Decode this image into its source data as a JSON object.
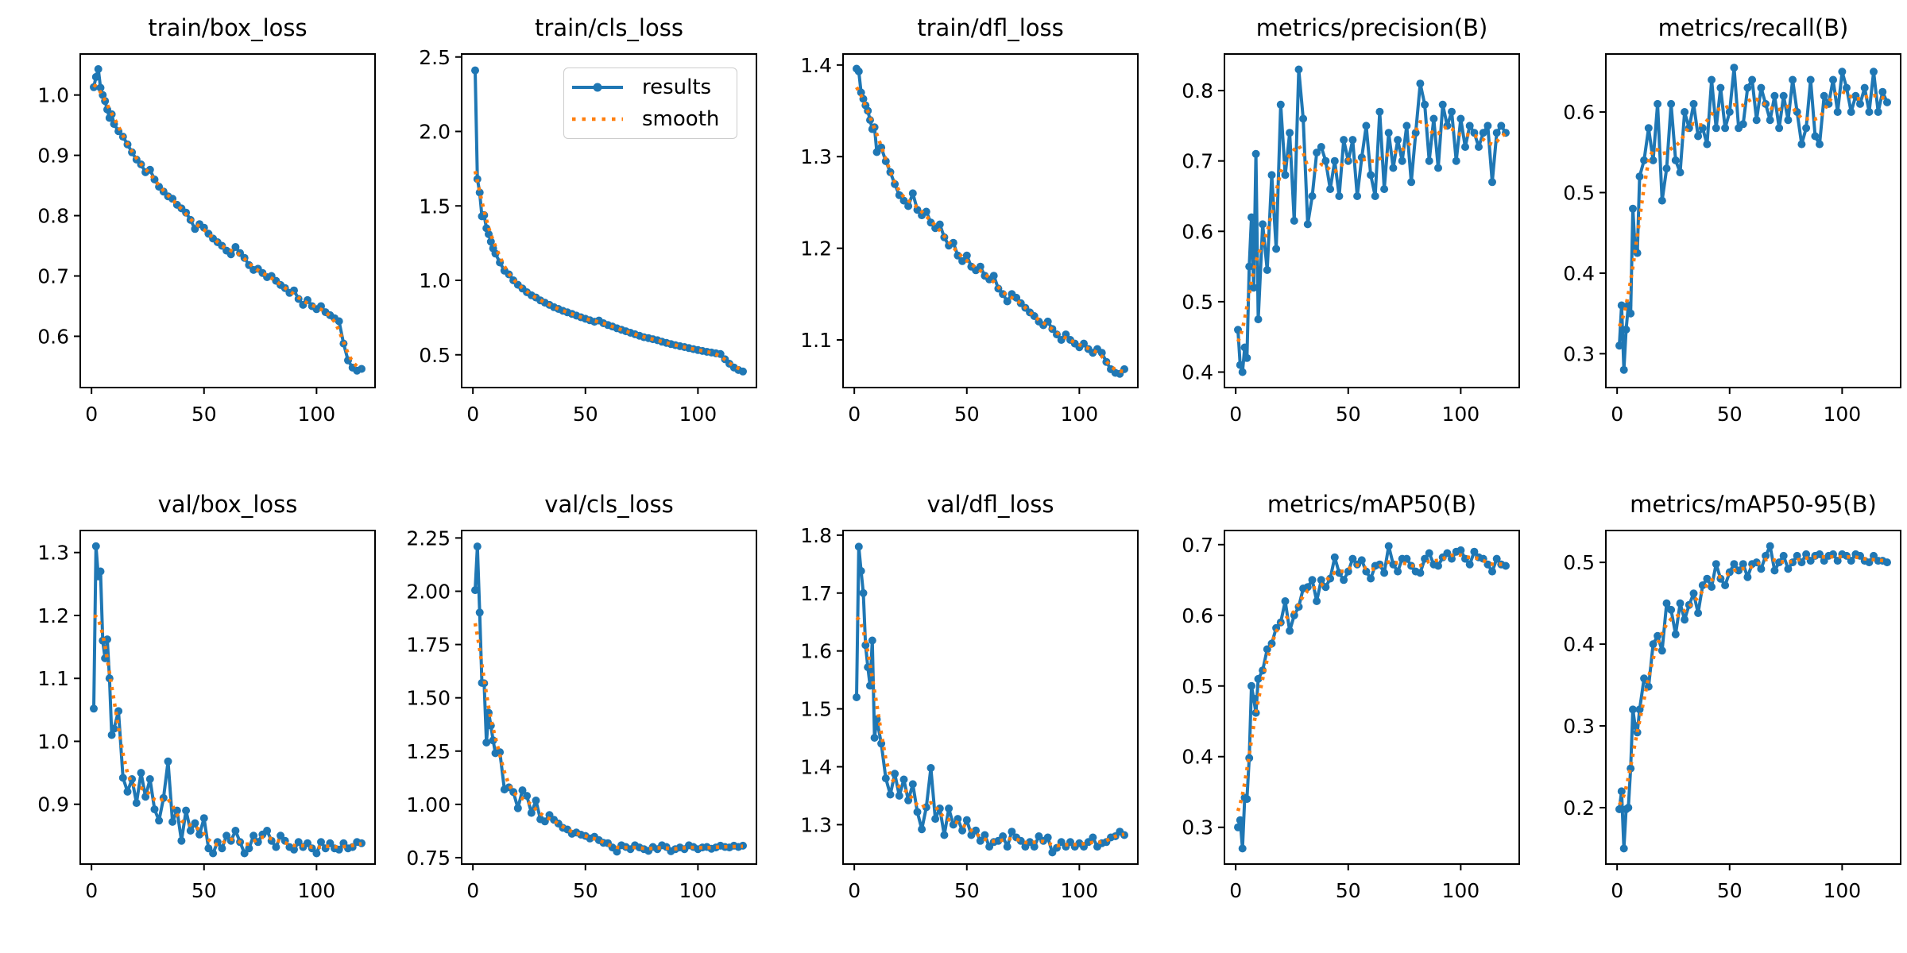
{
  "figure": {
    "background": "#ffffff",
    "spine_color": "#000000",
    "tick_color": "#000000"
  },
  "chart_data": {
    "type": "line",
    "legend": [
      "results",
      "smooth"
    ],
    "legend_position": "upper-right of train/cls_loss subplot",
    "colors": {
      "results": "#1f77b4",
      "smooth": "#ff7f0e"
    },
    "smooth": {
      "method": "gaussian",
      "sigma": 3
    },
    "grid": false,
    "xticks": [
      0,
      50,
      100
    ],
    "xtick_labels": [
      "0",
      "50",
      "100"
    ],
    "xlim": [
      -5,
      126
    ],
    "x": [
      1,
      2,
      3,
      4,
      5,
      6,
      7,
      8,
      9,
      10,
      12,
      14,
      16,
      18,
      20,
      22,
      24,
      26,
      28,
      30,
      32,
      34,
      36,
      38,
      40,
      42,
      44,
      46,
      48,
      50,
      52,
      54,
      56,
      58,
      60,
      62,
      64,
      66,
      68,
      70,
      72,
      74,
      76,
      78,
      80,
      82,
      84,
      86,
      88,
      90,
      92,
      94,
      96,
      98,
      100,
      102,
      104,
      106,
      108,
      110,
      112,
      114,
      116,
      118,
      120
    ],
    "subplots": [
      {
        "title": "train/box_loss",
        "ylim": [
          0.515,
          1.068
        ],
        "yticks": [
          0.6,
          0.7,
          0.8,
          0.9,
          1.0
        ],
        "ytick_labels": [
          "0.6",
          "0.7",
          "0.8",
          "0.9",
          "1.0"
        ],
        "values": [
          1.013,
          1.03,
          1.043,
          1.012,
          1.0,
          0.99,
          0.976,
          0.962,
          0.968,
          0.952,
          0.94,
          0.931,
          0.918,
          0.905,
          0.893,
          0.885,
          0.872,
          0.876,
          0.86,
          0.848,
          0.84,
          0.832,
          0.828,
          0.818,
          0.812,
          0.805,
          0.793,
          0.778,
          0.786,
          0.78,
          0.77,
          0.762,
          0.756,
          0.75,
          0.742,
          0.736,
          0.748,
          0.738,
          0.73,
          0.718,
          0.71,
          0.712,
          0.705,
          0.698,
          0.7,
          0.692,
          0.685,
          0.68,
          0.672,
          0.676,
          0.662,
          0.652,
          0.66,
          0.65,
          0.645,
          0.65,
          0.64,
          0.635,
          0.63,
          0.625,
          0.588,
          0.56,
          0.548,
          0.543,
          0.546
        ]
      },
      {
        "title": "train/cls_loss",
        "ylim": [
          0.28,
          2.52
        ],
        "yticks": [
          0.5,
          1.0,
          1.5,
          2.0,
          2.5
        ],
        "ytick_labels": [
          "0.5",
          "1.0",
          "1.5",
          "2.0",
          "2.5"
        ],
        "has_legend": true,
        "values": [
          2.41,
          1.68,
          1.59,
          1.43,
          1.438,
          1.35,
          1.31,
          1.26,
          1.215,
          1.18,
          1.12,
          1.065,
          1.04,
          1.0,
          0.97,
          0.945,
          0.92,
          0.9,
          0.885,
          0.865,
          0.85,
          0.835,
          0.82,
          0.808,
          0.795,
          0.785,
          0.775,
          0.763,
          0.752,
          0.742,
          0.732,
          0.722,
          0.73,
          0.712,
          0.7,
          0.69,
          0.678,
          0.668,
          0.658,
          0.648,
          0.638,
          0.628,
          0.618,
          0.612,
          0.605,
          0.598,
          0.588,
          0.58,
          0.572,
          0.565,
          0.558,
          0.552,
          0.545,
          0.538,
          0.532,
          0.526,
          0.52,
          0.515,
          0.51,
          0.505,
          0.47,
          0.44,
          0.415,
          0.398,
          0.388
        ]
      },
      {
        "title": "train/dfl_loss",
        "ylim": [
          1.048,
          1.412
        ],
        "yticks": [
          1.1,
          1.2,
          1.3,
          1.4
        ],
        "ytick_labels": [
          "1.1",
          "1.2",
          "1.3",
          "1.4"
        ],
        "values": [
          1.396,
          1.393,
          1.37,
          1.363,
          1.356,
          1.35,
          1.34,
          1.33,
          1.332,
          1.305,
          1.31,
          1.295,
          1.283,
          1.27,
          1.258,
          1.252,
          1.246,
          1.26,
          1.242,
          1.236,
          1.24,
          1.228,
          1.222,
          1.226,
          1.212,
          1.203,
          1.206,
          1.192,
          1.186,
          1.192,
          1.18,
          1.176,
          1.18,
          1.17,
          1.166,
          1.17,
          1.156,
          1.15,
          1.142,
          1.15,
          1.146,
          1.14,
          1.135,
          1.13,
          1.126,
          1.12,
          1.116,
          1.12,
          1.112,
          1.106,
          1.1,
          1.106,
          1.1,
          1.096,
          1.092,
          1.096,
          1.09,
          1.086,
          1.09,
          1.086,
          1.076,
          1.068,
          1.064,
          1.063,
          1.068
        ]
      },
      {
        "title": "metrics/precision(B)",
        "ylim": [
          0.378,
          0.852
        ],
        "yticks": [
          0.4,
          0.5,
          0.6,
          0.7,
          0.8
        ],
        "ytick_labels": [
          "0.4",
          "0.5",
          "0.6",
          "0.7",
          "0.8"
        ],
        "values": [
          0.46,
          0.41,
          0.4,
          0.435,
          0.42,
          0.55,
          0.62,
          0.52,
          0.71,
          0.475,
          0.61,
          0.545,
          0.68,
          0.575,
          0.78,
          0.68,
          0.74,
          0.615,
          0.83,
          0.76,
          0.61,
          0.65,
          0.712,
          0.72,
          0.7,
          0.66,
          0.7,
          0.65,
          0.73,
          0.7,
          0.73,
          0.65,
          0.705,
          0.75,
          0.68,
          0.65,
          0.77,
          0.66,
          0.74,
          0.69,
          0.73,
          0.7,
          0.75,
          0.67,
          0.74,
          0.81,
          0.78,
          0.7,
          0.76,
          0.69,
          0.78,
          0.75,
          0.77,
          0.7,
          0.76,
          0.72,
          0.75,
          0.74,
          0.72,
          0.74,
          0.75,
          0.67,
          0.74,
          0.75,
          0.74
        ]
      },
      {
        "title": "metrics/recall(B)",
        "ylim": [
          0.258,
          0.672
        ],
        "yticks": [
          0.3,
          0.4,
          0.5,
          0.6
        ],
        "ytick_labels": [
          "0.3",
          "0.4",
          "0.5",
          "0.6"
        ],
        "values": [
          0.31,
          0.36,
          0.28,
          0.33,
          0.36,
          0.35,
          0.48,
          0.43,
          0.425,
          0.52,
          0.54,
          0.58,
          0.54,
          0.61,
          0.49,
          0.53,
          0.61,
          0.54,
          0.525,
          0.6,
          0.58,
          0.61,
          0.57,
          0.58,
          0.56,
          0.64,
          0.58,
          0.63,
          0.58,
          0.6,
          0.655,
          0.58,
          0.585,
          0.63,
          0.64,
          0.59,
          0.63,
          0.61,
          0.59,
          0.62,
          0.58,
          0.62,
          0.59,
          0.64,
          0.6,
          0.56,
          0.58,
          0.64,
          0.57,
          0.56,
          0.62,
          0.61,
          0.64,
          0.6,
          0.65,
          0.63,
          0.6,
          0.62,
          0.61,
          0.63,
          0.6,
          0.65,
          0.6,
          0.625,
          0.612
        ]
      },
      {
        "title": "val/box_loss",
        "ylim": [
          0.805,
          1.335
        ],
        "yticks": [
          0.9,
          1.0,
          1.1,
          1.2,
          1.3
        ],
        "ytick_labels": [
          "0.9",
          "1.0",
          "1.1",
          "1.2",
          "1.3"
        ],
        "values": [
          1.052,
          1.31,
          1.262,
          1.27,
          1.16,
          1.132,
          1.162,
          1.1,
          1.01,
          1.02,
          1.048,
          0.942,
          0.92,
          0.94,
          0.902,
          0.95,
          0.912,
          0.94,
          0.892,
          0.874,
          0.91,
          0.968,
          0.872,
          0.89,
          0.842,
          0.89,
          0.858,
          0.87,
          0.852,
          0.878,
          0.83,
          0.822,
          0.84,
          0.83,
          0.85,
          0.842,
          0.858,
          0.84,
          0.822,
          0.83,
          0.85,
          0.84,
          0.852,
          0.858,
          0.842,
          0.832,
          0.85,
          0.842,
          0.832,
          0.828,
          0.84,
          0.832,
          0.838,
          0.83,
          0.822,
          0.84,
          0.83,
          0.838,
          0.83,
          0.828,
          0.838,
          0.83,
          0.832,
          0.84,
          0.838
        ]
      },
      {
        "title": "val/cls_loss",
        "ylim": [
          0.72,
          2.285
        ],
        "yticks": [
          0.75,
          1.0,
          1.25,
          1.5,
          1.75,
          2.0,
          2.25
        ],
        "ytick_labels": [
          "0.75",
          "1.00",
          "1.25",
          "1.50",
          "1.75",
          "2.00",
          "2.25"
        ],
        "values": [
          2.005,
          2.21,
          1.9,
          1.57,
          1.568,
          1.29,
          1.43,
          1.37,
          1.3,
          1.24,
          1.245,
          1.07,
          1.08,
          1.058,
          0.982,
          1.066,
          1.04,
          0.96,
          1.018,
          0.93,
          0.92,
          0.95,
          0.928,
          0.91,
          0.89,
          0.882,
          0.862,
          0.868,
          0.858,
          0.852,
          0.84,
          0.848,
          0.832,
          0.82,
          0.818,
          0.798,
          0.778,
          0.808,
          0.8,
          0.79,
          0.808,
          0.798,
          0.79,
          0.782,
          0.8,
          0.79,
          0.808,
          0.8,
          0.78,
          0.79,
          0.798,
          0.79,
          0.808,
          0.8,
          0.79,
          0.798,
          0.8,
          0.792,
          0.798,
          0.806,
          0.8,
          0.798,
          0.806,
          0.8,
          0.806
        ]
      },
      {
        "title": "val/dfl_loss",
        "ylim": [
          1.232,
          1.808
        ],
        "yticks": [
          1.3,
          1.4,
          1.5,
          1.6,
          1.7,
          1.8
        ],
        "ytick_labels": [
          "1.3",
          "1.4",
          "1.5",
          "1.6",
          "1.7",
          "1.8"
        ],
        "values": [
          1.52,
          1.78,
          1.738,
          1.7,
          1.61,
          1.572,
          1.54,
          1.618,
          1.45,
          1.482,
          1.44,
          1.38,
          1.352,
          1.388,
          1.35,
          1.378,
          1.342,
          1.37,
          1.322,
          1.292,
          1.33,
          1.398,
          1.31,
          1.328,
          1.282,
          1.328,
          1.3,
          1.31,
          1.29,
          1.308,
          1.282,
          1.29,
          1.272,
          1.282,
          1.262,
          1.27,
          1.272,
          1.28,
          1.262,
          1.288,
          1.278,
          1.272,
          1.262,
          1.27,
          1.262,
          1.28,
          1.272,
          1.278,
          1.252,
          1.26,
          1.27,
          1.262,
          1.27,
          1.262,
          1.268,
          1.262,
          1.27,
          1.278,
          1.262,
          1.268,
          1.27,
          1.278,
          1.28,
          1.288,
          1.282
        ]
      },
      {
        "title": "metrics/mAP50(B)",
        "ylim": [
          0.248,
          0.72
        ],
        "yticks": [
          0.3,
          0.4,
          0.5,
          0.6,
          0.7
        ],
        "ytick_labels": [
          "0.3",
          "0.4",
          "0.5",
          "0.6",
          "0.7"
        ],
        "values": [
          0.3,
          0.31,
          0.27,
          0.342,
          0.34,
          0.398,
          0.5,
          0.482,
          0.462,
          0.51,
          0.522,
          0.552,
          0.56,
          0.582,
          0.59,
          0.62,
          0.578,
          0.6,
          0.612,
          0.638,
          0.64,
          0.65,
          0.62,
          0.65,
          0.64,
          0.652,
          0.682,
          0.66,
          0.65,
          0.662,
          0.68,
          0.672,
          0.678,
          0.662,
          0.652,
          0.67,
          0.672,
          0.66,
          0.698,
          0.672,
          0.662,
          0.68,
          0.68,
          0.67,
          0.662,
          0.66,
          0.68,
          0.688,
          0.672,
          0.67,
          0.682,
          0.688,
          0.68,
          0.69,
          0.692,
          0.68,
          0.672,
          0.69,
          0.682,
          0.68,
          0.672,
          0.662,
          0.68,
          0.672,
          0.67
        ]
      },
      {
        "title": "metrics/mAP50-95(B)",
        "ylim": [
          0.131,
          0.539
        ],
        "yticks": [
          0.2,
          0.3,
          0.4,
          0.5
        ],
        "ytick_labels": [
          "0.2",
          "0.3",
          "0.4",
          "0.5"
        ],
        "values": [
          0.198,
          0.22,
          0.15,
          0.198,
          0.2,
          0.248,
          0.32,
          0.3,
          0.292,
          0.32,
          0.358,
          0.348,
          0.4,
          0.41,
          0.392,
          0.45,
          0.442,
          0.412,
          0.45,
          0.43,
          0.448,
          0.462,
          0.438,
          0.472,
          0.48,
          0.47,
          0.498,
          0.48,
          0.472,
          0.488,
          0.498,
          0.49,
          0.498,
          0.482,
          0.498,
          0.5,
          0.492,
          0.508,
          0.52,
          0.49,
          0.5,
          0.508,
          0.492,
          0.5,
          0.508,
          0.5,
          0.51,
          0.502,
          0.508,
          0.51,
          0.502,
          0.508,
          0.51,
          0.502,
          0.51,
          0.508,
          0.502,
          0.51,
          0.508,
          0.502,
          0.5,
          0.508,
          0.502,
          0.502,
          0.5
        ]
      }
    ]
  }
}
